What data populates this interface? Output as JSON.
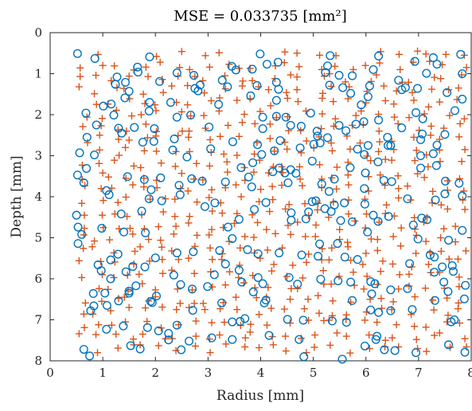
{
  "chart_data": {
    "type": "scatter",
    "title": "MSE = 0.033735 [mm²]",
    "xlabel": "Radius [mm]",
    "ylabel": "Depth [mm]",
    "xlim": [
      0,
      8
    ],
    "ylim": [
      0,
      8
    ],
    "y_reversed": true,
    "xticks": [
      "0",
      "1",
      "2",
      "3",
      "4",
      "5",
      "6",
      "7",
      "8"
    ],
    "yticks": [
      "0",
      "1",
      "2",
      "3",
      "4",
      "5",
      "6",
      "7",
      "8"
    ],
    "grid": false,
    "legend": "none",
    "marker_colors": {
      "circle": "#0072BD",
      "plus": "#D95319"
    },
    "series": [
      {
        "marker": "circle",
        "color": "#0072BD",
        "points": []
      },
      {
        "marker": "plus",
        "color": "#D95319",
        "points": []
      }
    ]
  }
}
